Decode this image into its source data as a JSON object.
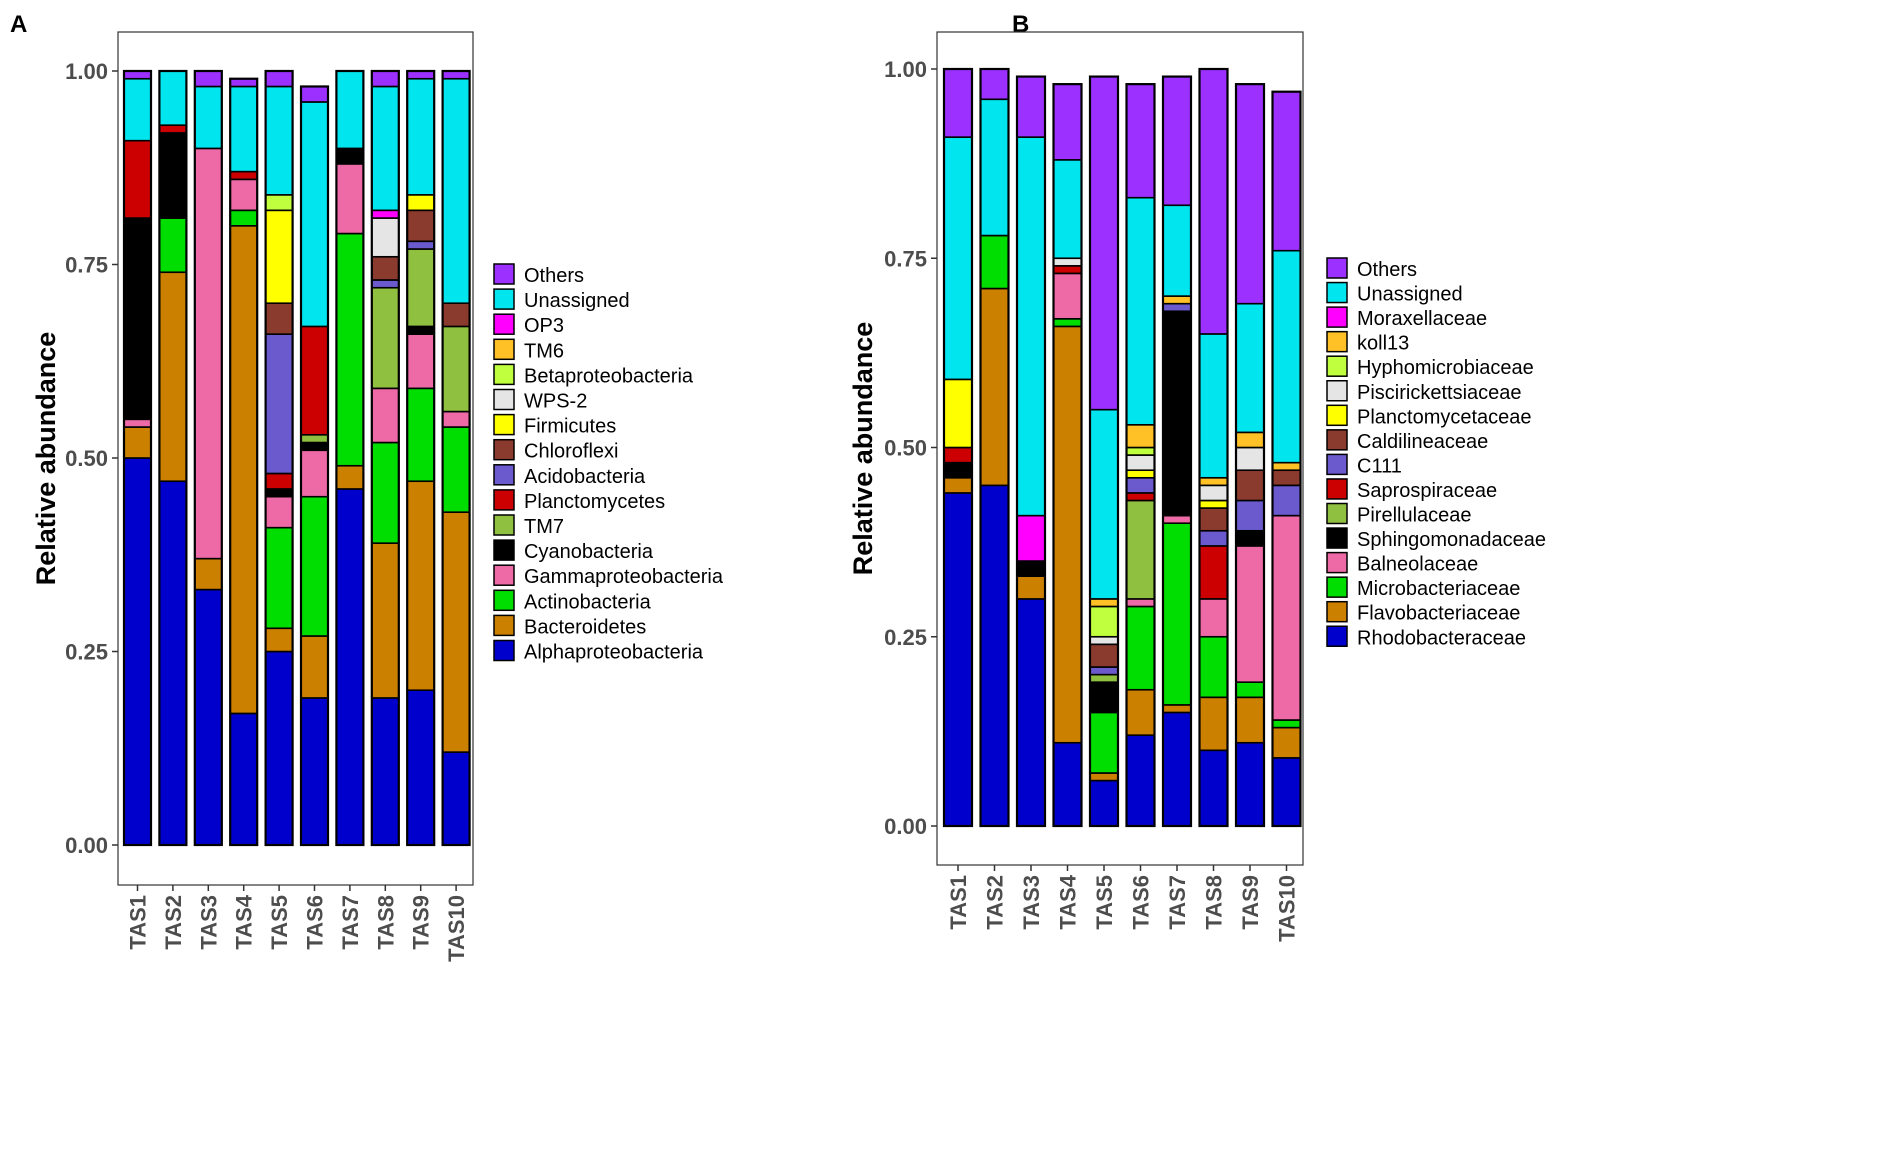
{
  "panels": [
    "A",
    "B"
  ],
  "chart_data": [
    {
      "type": "bar",
      "stacked": true,
      "panel": "A",
      "ylabel": "Relative abundance",
      "xlabel": "",
      "ylim": [
        0,
        1
      ],
      "yticks": [
        "0.00",
        "0.25",
        "0.50",
        "0.75",
        "1.00"
      ],
      "categories": [
        "TAS1",
        "TAS2",
        "TAS3",
        "TAS4",
        "TAS5",
        "TAS6",
        "TAS7",
        "TAS8",
        "TAS9",
        "TAS10"
      ],
      "legend_position": "right",
      "series": [
        {
          "name": "Alphaproteobacteria",
          "color": "#0000CD",
          "values": [
            0.5,
            0.47,
            0.33,
            0.17,
            0.25,
            0.19,
            0.46,
            0.19,
            0.2,
            0.12
          ]
        },
        {
          "name": "Bacteroidetes",
          "color": "#CC8000",
          "values": [
            0.04,
            0.27,
            0.04,
            0.63,
            0.03,
            0.08,
            0.03,
            0.2,
            0.27,
            0.31
          ]
        },
        {
          "name": "Actinobacteria",
          "color": "#00DD00",
          "values": [
            0.0,
            0.07,
            0.0,
            0.02,
            0.13,
            0.18,
            0.3,
            0.13,
            0.12,
            0.11
          ]
        },
        {
          "name": "Gammaproteobacteria",
          "color": "#EE6AA7",
          "values": [
            0.01,
            0.0,
            0.53,
            0.04,
            0.04,
            0.06,
            0.09,
            0.07,
            0.07,
            0.02
          ]
        },
        {
          "name": "Cyanobacteria",
          "color": "#000000",
          "values": [
            0.26,
            0.11,
            0.0,
            0.0,
            0.01,
            0.01,
            0.02,
            0.0,
            0.01,
            0.0
          ]
        },
        {
          "name": "TM7",
          "color": "#90C040",
          "values": [
            0.0,
            0.0,
            0.0,
            0.0,
            0.0,
            0.01,
            0.0,
            0.13,
            0.1,
            0.11
          ]
        },
        {
          "name": "Planctomycetes",
          "color": "#CC0000",
          "values": [
            0.1,
            0.01,
            0.0,
            0.01,
            0.02,
            0.14,
            0.0,
            0.0,
            0.0,
            0.0
          ]
        },
        {
          "name": "Acidobacteria",
          "color": "#6A5ACD",
          "values": [
            0.0,
            0.0,
            0.0,
            0.0,
            0.18,
            0.0,
            0.0,
            0.01,
            0.01,
            0.0
          ]
        },
        {
          "name": "Chloroflexi",
          "color": "#8B3A2E",
          "values": [
            0.0,
            0.0,
            0.0,
            0.0,
            0.04,
            0.0,
            0.0,
            0.03,
            0.04,
            0.03
          ]
        },
        {
          "name": "Firmicutes",
          "color": "#FFFF00",
          "values": [
            0.0,
            0.0,
            0.0,
            0.0,
            0.12,
            0.0,
            0.0,
            0.0,
            0.02,
            0.0
          ]
        },
        {
          "name": "WPS-2",
          "color": "#E5E5E5",
          "values": [
            0.0,
            0.0,
            0.0,
            0.0,
            0.0,
            0.0,
            0.0,
            0.05,
            0.0,
            0.0
          ]
        },
        {
          "name": "Betaproteobacteria",
          "color": "#C0FF3E",
          "values": [
            0.0,
            0.0,
            0.0,
            0.0,
            0.02,
            0.0,
            0.0,
            0.0,
            0.0,
            0.0
          ]
        },
        {
          "name": "TM6",
          "color": "#FFC125",
          "values": [
            0.0,
            0.0,
            0.0,
            0.0,
            0.0,
            0.0,
            0.0,
            0.0,
            0.0,
            0.0
          ]
        },
        {
          "name": "OP3",
          "color": "#FF00FF",
          "values": [
            0.0,
            0.0,
            0.0,
            0.0,
            0.0,
            0.0,
            0.0,
            0.01,
            0.0,
            0.0
          ]
        },
        {
          "name": "Unassigned",
          "color": "#00E5EE",
          "values": [
            0.08,
            0.07,
            0.08,
            0.11,
            0.14,
            0.29,
            0.1,
            0.16,
            0.15,
            0.29
          ]
        },
        {
          "name": "Others",
          "color": "#9B30FF",
          "values": [
            0.01,
            0.0,
            0.02,
            0.01,
            0.02,
            0.02,
            0.0,
            0.02,
            0.01,
            0.01
          ]
        }
      ]
    },
    {
      "type": "bar",
      "stacked": true,
      "panel": "B",
      "ylabel": "Relative abundance",
      "xlabel": "",
      "ylim": [
        0,
        1
      ],
      "yticks": [
        "0.00",
        "0.25",
        "0.50",
        "0.75",
        "1.00"
      ],
      "categories": [
        "TAS1",
        "TAS2",
        "TAS3",
        "TAS4",
        "TAS5",
        "TAS6",
        "TAS7",
        "TAS8",
        "TAS9",
        "TAS10"
      ],
      "legend_position": "right",
      "series": [
        {
          "name": "Rhodobacteraceae",
          "color": "#0000CD",
          "values": [
            0.44,
            0.45,
            0.3,
            0.11,
            0.06,
            0.12,
            0.15,
            0.1,
            0.11,
            0.09
          ]
        },
        {
          "name": "Flavobacteriaceae",
          "color": "#CC8000",
          "values": [
            0.02,
            0.26,
            0.03,
            0.55,
            0.01,
            0.06,
            0.01,
            0.07,
            0.06,
            0.04
          ]
        },
        {
          "name": "Microbacteriaceae",
          "color": "#00DD00",
          "values": [
            0.0,
            0.07,
            0.0,
            0.01,
            0.08,
            0.11,
            0.24,
            0.08,
            0.02,
            0.01
          ]
        },
        {
          "name": "Balneolaceae",
          "color": "#EE6AA7",
          "values": [
            0.0,
            0.0,
            0.0,
            0.06,
            0.0,
            0.01,
            0.01,
            0.05,
            0.18,
            0.27
          ]
        },
        {
          "name": "Sphingomonadaceae",
          "color": "#000000",
          "values": [
            0.02,
            0.0,
            0.02,
            0.0,
            0.04,
            0.0,
            0.27,
            0.0,
            0.02,
            0.0
          ]
        },
        {
          "name": "Pirellulaceae",
          "color": "#90C040",
          "values": [
            0.0,
            0.0,
            0.0,
            0.0,
            0.01,
            0.13,
            0.0,
            0.0,
            0.0,
            0.0
          ]
        },
        {
          "name": "Saprospiraceae",
          "color": "#CC0000",
          "values": [
            0.02,
            0.0,
            0.0,
            0.01,
            0.0,
            0.01,
            0.0,
            0.07,
            0.0,
            0.0
          ]
        },
        {
          "name": "C111",
          "color": "#6A5ACD",
          "values": [
            0.0,
            0.0,
            0.0,
            0.0,
            0.01,
            0.02,
            0.01,
            0.02,
            0.04,
            0.04
          ]
        },
        {
          "name": "Caldilineaceae",
          "color": "#8B3A2E",
          "values": [
            0.0,
            0.0,
            0.0,
            0.0,
            0.03,
            0.0,
            0.0,
            0.03,
            0.04,
            0.02
          ]
        },
        {
          "name": "Planctomycetaceae",
          "color": "#FFFF00",
          "values": [
            0.09,
            0.0,
            0.0,
            0.0,
            0.0,
            0.01,
            0.0,
            0.01,
            0.0,
            0.0
          ]
        },
        {
          "name": "Piscirickettsiaceae",
          "color": "#E5E5E5",
          "values": [
            0.0,
            0.0,
            0.0,
            0.01,
            0.01,
            0.02,
            0.0,
            0.02,
            0.03,
            0.0
          ]
        },
        {
          "name": "Hyphomicrobiaceae",
          "color": "#C0FF3E",
          "values": [
            0.0,
            0.0,
            0.0,
            0.0,
            0.04,
            0.01,
            0.0,
            0.0,
            0.0,
            0.0
          ]
        },
        {
          "name": "koll13",
          "color": "#FFC125",
          "values": [
            0.0,
            0.0,
            0.0,
            0.0,
            0.01,
            0.03,
            0.01,
            0.01,
            0.02,
            0.01
          ]
        },
        {
          "name": "Moraxellaceae",
          "color": "#FF00FF",
          "values": [
            0.0,
            0.0,
            0.06,
            0.0,
            0.0,
            0.0,
            0.0,
            0.0,
            0.0,
            0.0
          ]
        },
        {
          "name": "Unassigned",
          "color": "#00E5EE",
          "values": [
            0.32,
            0.18,
            0.5,
            0.13,
            0.25,
            0.3,
            0.12,
            0.19,
            0.17,
            0.28
          ]
        },
        {
          "name": "Others",
          "color": "#9B30FF",
          "values": [
            0.09,
            0.04,
            0.08,
            0.1,
            0.44,
            0.15,
            0.17,
            0.35,
            0.29,
            0.21
          ]
        }
      ]
    }
  ]
}
